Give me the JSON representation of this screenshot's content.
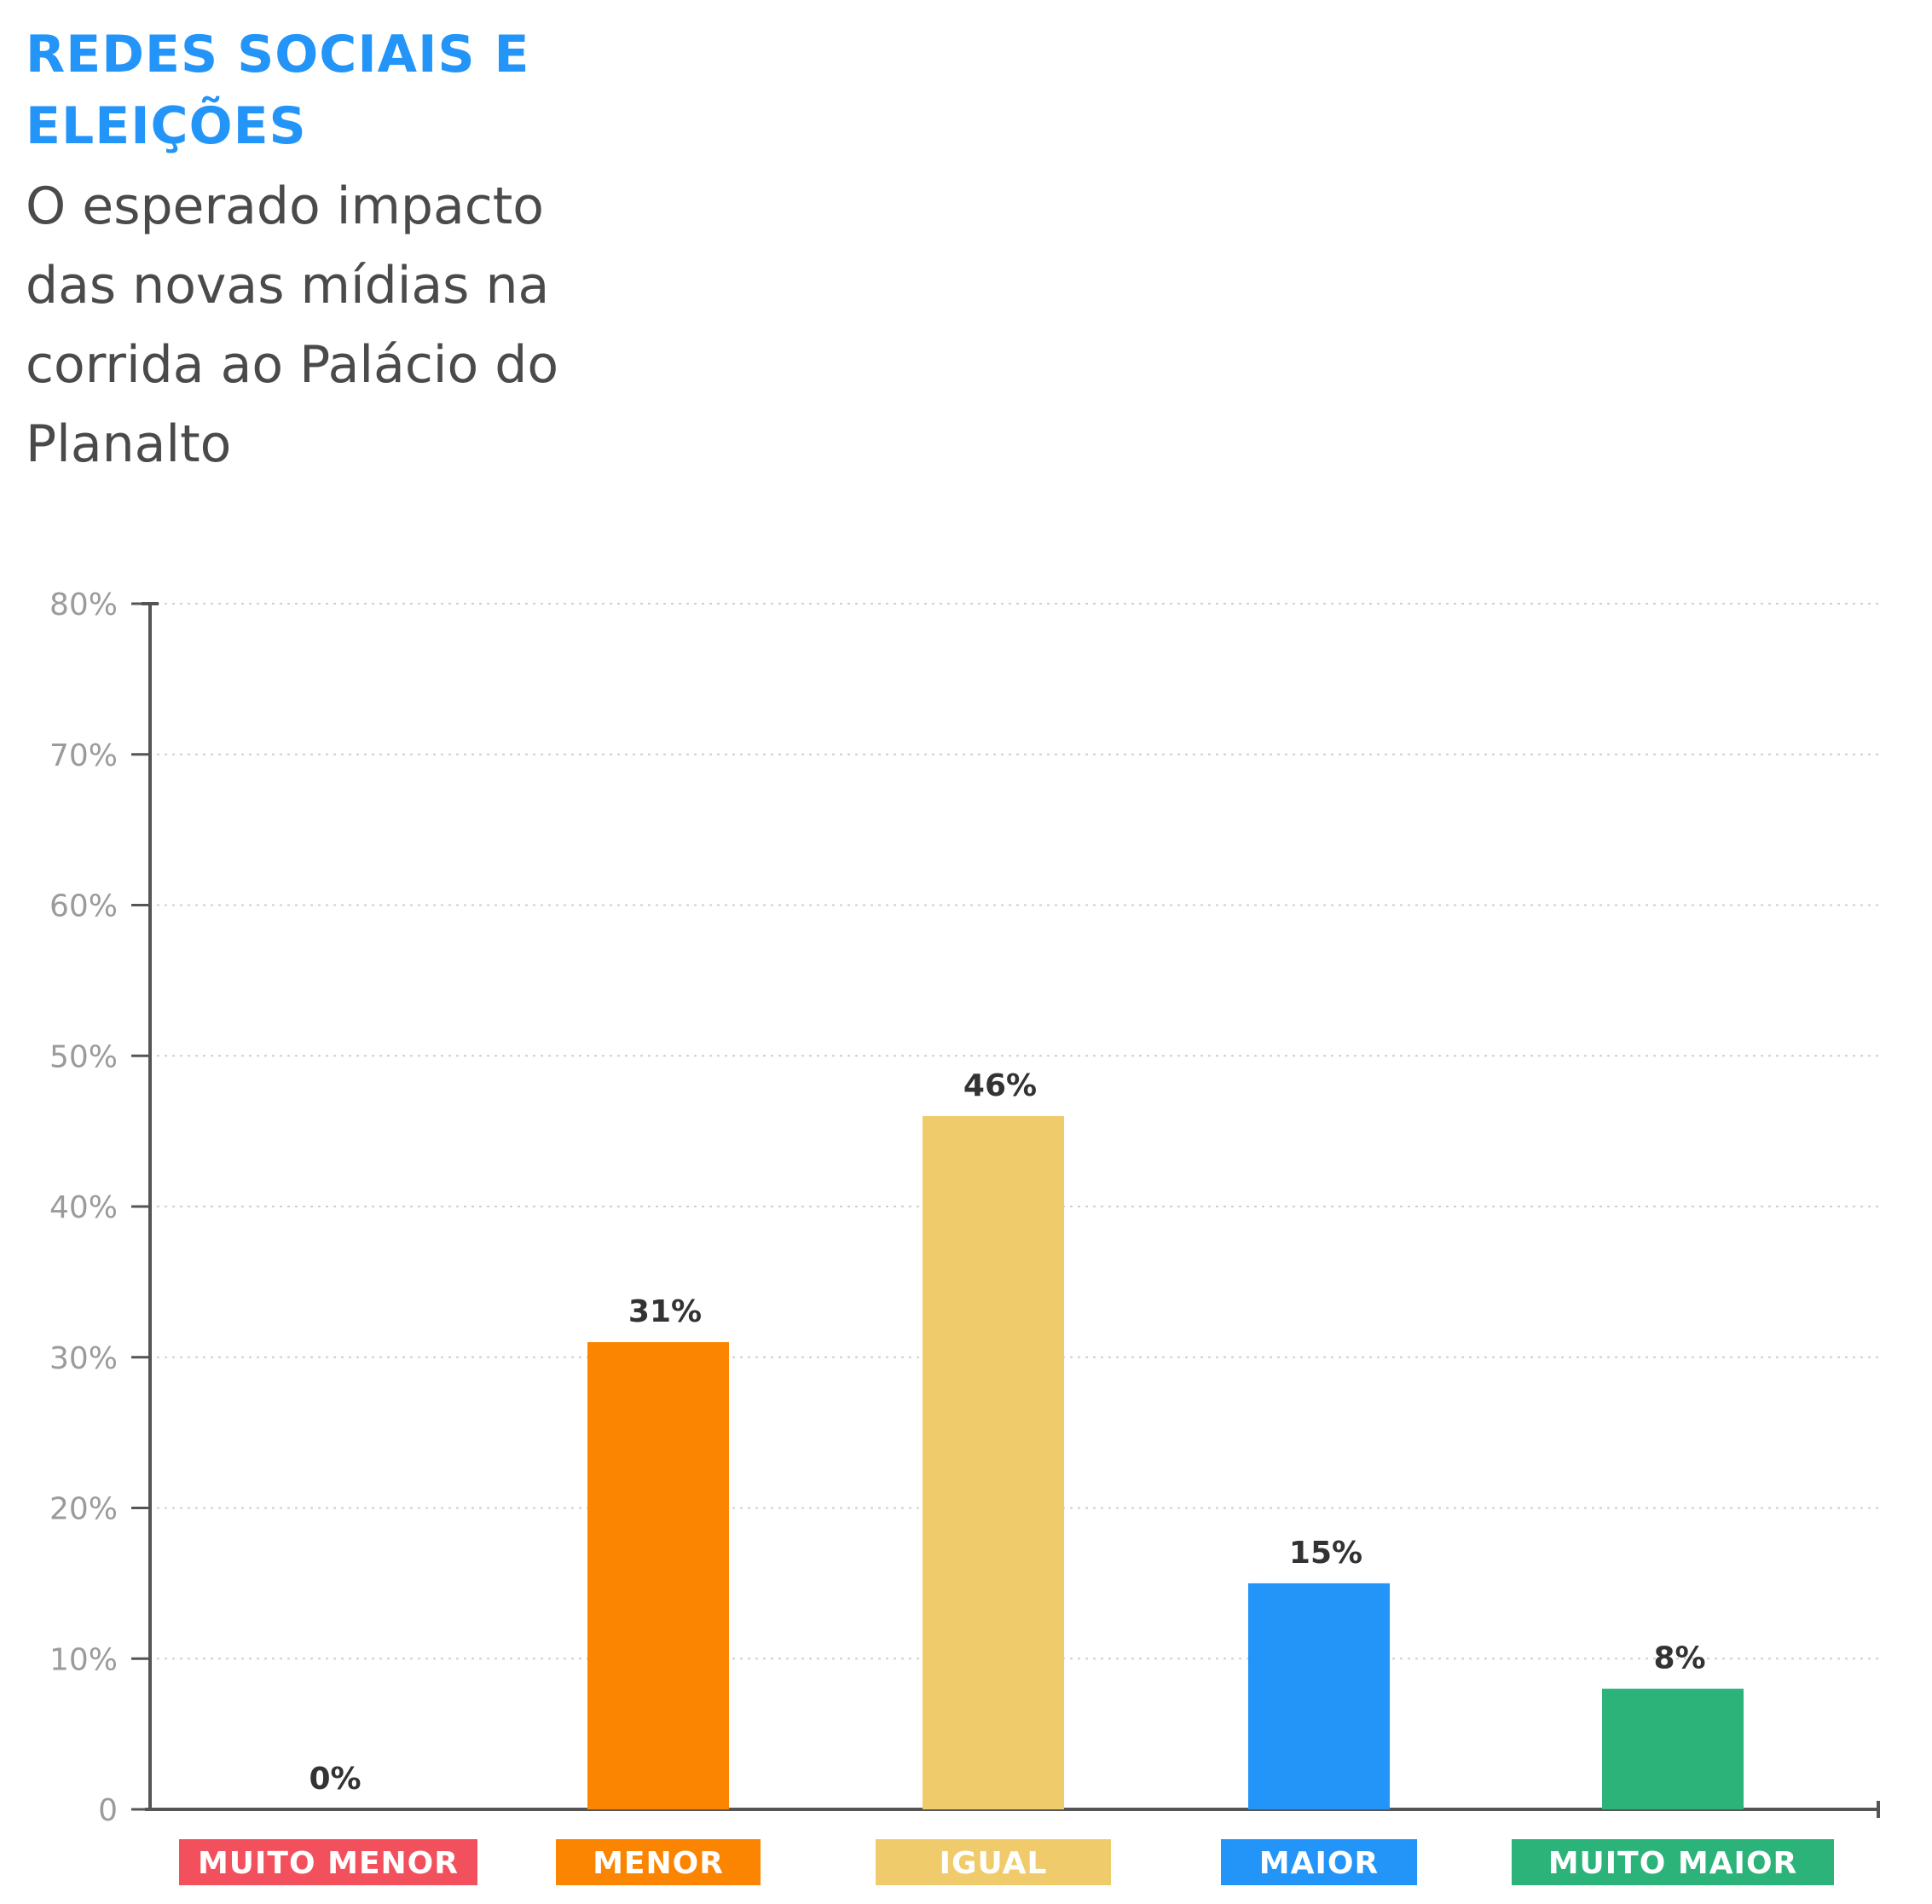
{
  "chart_data": {
    "type": "bar",
    "title": "REDES SOCIAIS E ELEIÇÕES",
    "subtitle": "O esperado impacto das novas mídias na corrida ao Palácio do Planalto",
    "categories": [
      "MUITO MENOR",
      "MENOR",
      "IGUAL",
      "MAIOR",
      "MUITO MAIOR"
    ],
    "values": [
      0,
      31,
      46,
      15,
      8
    ],
    "value_labels": [
      "0%",
      "31%",
      "46%",
      "15%",
      "8%"
    ],
    "colors": [
      "#f2505d",
      "#fb8500",
      "#f0cb6b",
      "#2394f8",
      "#2bb37a"
    ],
    "ylim": [
      0,
      80
    ],
    "yticks": [
      0,
      10,
      20,
      30,
      40,
      50,
      60,
      70,
      80
    ],
    "ytick_labels": [
      "0",
      "10%",
      "20%",
      "30%",
      "40%",
      "50%",
      "60%",
      "70%",
      "80%"
    ],
    "grid": true,
    "xlabel": "",
    "ylabel": "",
    "legend": "none"
  }
}
